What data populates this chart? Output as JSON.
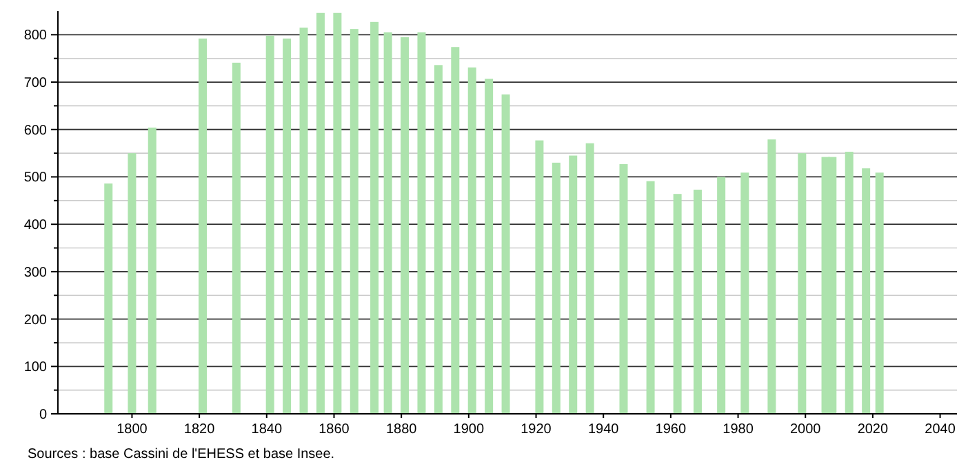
{
  "chart_data": {
    "type": "bar",
    "x": [
      1793,
      1800,
      1806,
      1821,
      1831,
      1841,
      1846,
      1851,
      1856,
      1861,
      1866,
      1872,
      1876,
      1881,
      1886,
      1891,
      1896,
      1901,
      1906,
      1911,
      1921,
      1926,
      1931,
      1936,
      1946,
      1954,
      1962,
      1968,
      1975,
      1982,
      1990,
      1999,
      2006,
      2008,
      2013,
      2018,
      2022
    ],
    "values": [
      486,
      550,
      604,
      792,
      741,
      798,
      792,
      815,
      846,
      846,
      812,
      827,
      805,
      795,
      805,
      736,
      774,
      731,
      707,
      674,
      577,
      530,
      545,
      571,
      527,
      491,
      464,
      473,
      500,
      509,
      579,
      550,
      542,
      542,
      553,
      518,
      509
    ],
    "color": "#ade3ad",
    "xlim": [
      1778,
      2045
    ],
    "xticks": [
      1800,
      1820,
      1840,
      1860,
      1880,
      1900,
      1920,
      1940,
      1960,
      1980,
      2000,
      2020,
      2040
    ],
    "ylim": [
      0,
      850
    ],
    "yticks": [
      0,
      {
        "value": 50,
        "label": null
      },
      100,
      {
        "value": 150,
        "label": null
      },
      200,
      {
        "value": 250,
        "label": null
      },
      300,
      {
        "value": 350,
        "label": null
      },
      400,
      {
        "value": 450,
        "label": null
      },
      500,
      {
        "value": 550,
        "label": null
      },
      600,
      {
        "value": 650,
        "label": null
      },
      700,
      {
        "value": 750,
        "label": null
      },
      800
    ],
    "grid": true,
    "annotations": [
      "Sources : base Cassini de l'EHESS et base Insee."
    ]
  }
}
